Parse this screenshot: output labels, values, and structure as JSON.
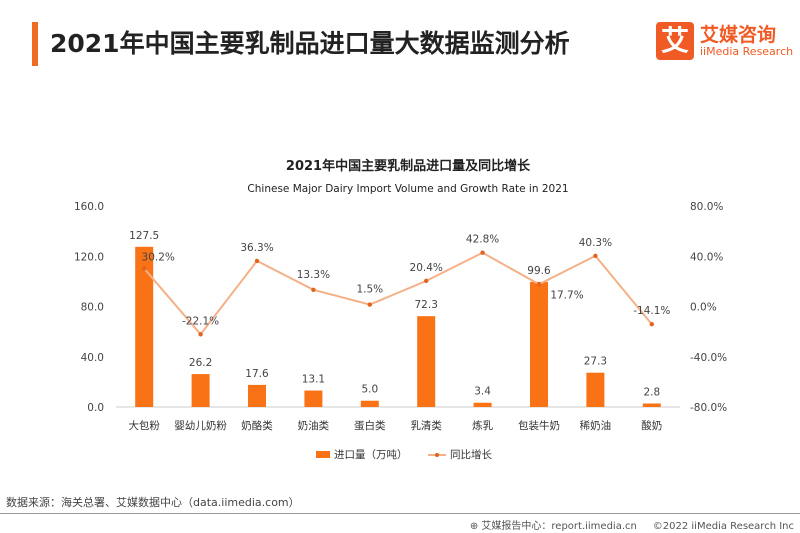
{
  "header": {
    "title": "2021年中国主要乳制品进口量大数据监测分析"
  },
  "logo": {
    "icon_char": "艾",
    "name_cn": "艾媒咨询",
    "name_en": "iiMedia Research"
  },
  "colors": {
    "accent": "#f26b22",
    "bar": "#f97316",
    "line": "#f5b088",
    "point": "#e0641e"
  },
  "chart_data": {
    "type": "bar+line",
    "title": "2021年中国主要乳制品进口量及同比增长",
    "subtitle": "Chinese Major Dairy Import Volume and Growth Rate in 2021",
    "categories": [
      "大包粉",
      "婴幼儿奶粉",
      "奶酪类",
      "奶油类",
      "蛋白类",
      "乳清类",
      "炼乳",
      "包装牛奶",
      "稀奶油",
      "酸奶"
    ],
    "series": [
      {
        "name": "进口量（万吨）",
        "type": "bar",
        "axis": "left",
        "values": [
          127.5,
          26.2,
          17.6,
          13.1,
          5.0,
          72.3,
          3.4,
          99.6,
          27.3,
          2.8
        ],
        "labels": [
          "127.5",
          "26.2",
          "17.6",
          "13.1",
          "5.0",
          "72.3",
          "3.4",
          "99.6",
          "27.3",
          "2.8"
        ]
      },
      {
        "name": "同比增长",
        "type": "line",
        "axis": "right",
        "values": [
          30.2,
          -22.1,
          36.3,
          13.3,
          1.5,
          20.4,
          42.8,
          17.7,
          40.3,
          -14.1
        ],
        "labels": [
          "30.2%",
          "-22.1%",
          "36.3%",
          "13.3%",
          "1.5%",
          "20.4%",
          "42.8%",
          "17.7%",
          "40.3%",
          "-14.1%"
        ]
      }
    ],
    "left_axis": {
      "ylim": [
        0,
        160
      ],
      "ticks": [
        "0.0",
        "40.0",
        "80.0",
        "120.0",
        "160.0"
      ]
    },
    "right_axis": {
      "ylim": [
        -80,
        80
      ],
      "ticks": [
        "-80.0%",
        "-40.0%",
        "0.0%",
        "40.0%",
        "80.0%"
      ]
    },
    "grid": false,
    "legend": "bottom"
  },
  "footer": {
    "source": "数据来源：海关总署、艾媒数据中心（data.iimedia.com）",
    "report": "艾媒报告中心：report.iimedia.cn",
    "copyright": "©2022  iiMedia Research  Inc"
  }
}
